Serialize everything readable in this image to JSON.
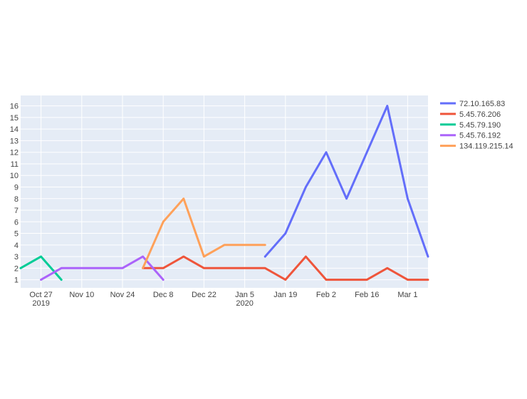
{
  "chart_data": {
    "type": "line",
    "title": "",
    "xlabel": "",
    "ylabel": "",
    "x_dates": [
      "2019-10-20",
      "2019-10-27",
      "2019-11-03",
      "2019-11-10",
      "2019-11-17",
      "2019-11-24",
      "2019-12-01",
      "2019-12-08",
      "2019-12-15",
      "2019-12-22",
      "2019-12-29",
      "2020-01-05",
      "2020-01-12",
      "2020-01-19",
      "2020-01-26",
      "2020-02-02",
      "2020-02-09",
      "2020-02-16",
      "2020-02-23",
      "2020-03-01",
      "2020-03-08"
    ],
    "xlim": [
      "2019-10-20",
      "2020-03-08"
    ],
    "ylim": [
      0.3,
      16.9
    ],
    "x_ticks": [
      {
        "date": "2019-10-27",
        "label": "Oct 27",
        "sublabel": "2019"
      },
      {
        "date": "2019-11-10",
        "label": "Nov 10",
        "sublabel": ""
      },
      {
        "date": "2019-11-24",
        "label": "Nov 24",
        "sublabel": ""
      },
      {
        "date": "2019-12-08",
        "label": "Dec 8",
        "sublabel": ""
      },
      {
        "date": "2019-12-22",
        "label": "Dec 22",
        "sublabel": ""
      },
      {
        "date": "2020-01-05",
        "label": "Jan 5",
        "sublabel": "2020"
      },
      {
        "date": "2020-01-19",
        "label": "Jan 19",
        "sublabel": ""
      },
      {
        "date": "2020-02-02",
        "label": "Feb 2",
        "sublabel": ""
      },
      {
        "date": "2020-02-16",
        "label": "Feb 16",
        "sublabel": ""
      },
      {
        "date": "2020-03-01",
        "label": "Mar 1",
        "sublabel": ""
      }
    ],
    "y_ticks": [
      1,
      2,
      3,
      4,
      5,
      6,
      7,
      8,
      9,
      10,
      11,
      12,
      13,
      14,
      15,
      16
    ],
    "grid": true,
    "legend_position": "right",
    "plot_background": "#e5ecf6",
    "series": [
      {
        "name": "72.10.165.83",
        "color": "#636efa",
        "points": [
          [
            "2020-01-12",
            3
          ],
          [
            "2020-01-19",
            5
          ],
          [
            "2020-01-26",
            9
          ],
          [
            "2020-02-02",
            12
          ],
          [
            "2020-02-09",
            8
          ],
          [
            "2020-02-16",
            12
          ],
          [
            "2020-02-23",
            16
          ],
          [
            "2020-03-01",
            8
          ],
          [
            "2020-03-08",
            3
          ]
        ]
      },
      {
        "name": "5.45.76.206",
        "color": "#ef553b",
        "points": [
          [
            "2019-12-01",
            2
          ],
          [
            "2019-12-08",
            2
          ],
          [
            "2019-12-15",
            3
          ],
          [
            "2019-12-22",
            2
          ],
          [
            "2019-12-29",
            2
          ],
          [
            "2020-01-05",
            2
          ],
          [
            "2020-01-12",
            2
          ],
          [
            "2020-01-19",
            1
          ],
          [
            "2020-01-26",
            3
          ],
          [
            "2020-02-02",
            1
          ],
          [
            "2020-02-09",
            1
          ],
          [
            "2020-02-16",
            1
          ],
          [
            "2020-02-23",
            2
          ],
          [
            "2020-03-01",
            1
          ],
          [
            "2020-03-08",
            1
          ]
        ]
      },
      {
        "name": "5.45.79.190",
        "color": "#00cc96",
        "points": [
          [
            "2019-10-20",
            2
          ],
          [
            "2019-10-27",
            3
          ],
          [
            "2019-11-03",
            1
          ]
        ]
      },
      {
        "name": "5.45.76.192",
        "color": "#ab63fa",
        "points": [
          [
            "2019-10-27",
            1
          ],
          [
            "2019-11-03",
            2
          ],
          [
            "2019-11-10",
            2
          ],
          [
            "2019-11-17",
            2
          ],
          [
            "2019-11-24",
            2
          ],
          [
            "2019-12-01",
            3
          ],
          [
            "2019-12-08",
            1
          ]
        ]
      },
      {
        "name": "134.119.215.14",
        "color": "#ffa15a",
        "points": [
          [
            "2019-12-01",
            2
          ],
          [
            "2019-12-08",
            6
          ],
          [
            "2019-12-15",
            8
          ],
          [
            "2019-12-22",
            3
          ],
          [
            "2019-12-29",
            4
          ],
          [
            "2020-01-05",
            4
          ],
          [
            "2020-01-12",
            4
          ]
        ]
      }
    ]
  }
}
